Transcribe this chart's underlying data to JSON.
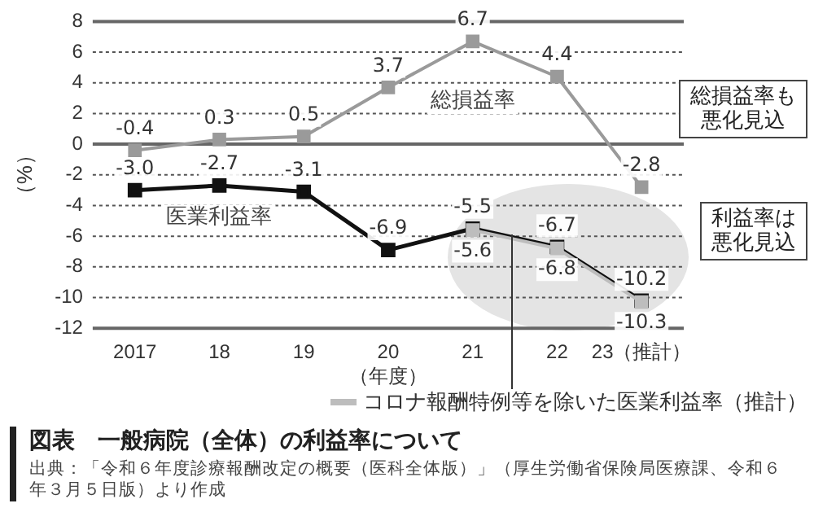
{
  "chart_data": {
    "type": "line",
    "title": "図表　一般病院（全体）の利益率について",
    "ylabel": "（%）",
    "xlabel": "（年度）",
    "categories": [
      "2017",
      "18",
      "19",
      "20",
      "21",
      "22",
      "23（推計）"
    ],
    "series": [
      {
        "name": "総損益率",
        "color": "#9a9a9a",
        "values": [
          -0.4,
          0.3,
          0.5,
          3.7,
          6.7,
          4.4,
          -2.8
        ],
        "value_labels": [
          "-0.4",
          "0.3",
          "0.5",
          "3.7",
          "6.7",
          "4.4",
          "-2.8"
        ]
      },
      {
        "name": "医業利益率",
        "color": "#111111",
        "values": [
          -3.0,
          -2.7,
          -3.1,
          -6.9,
          -5.5,
          -6.7,
          -10.2
        ],
        "value_labels": [
          "-3.0",
          "-2.7",
          "-3.1",
          "-6.9",
          "-5.5",
          "-6.7",
          "-10.2"
        ]
      },
      {
        "name": "コロナ報酬特例等を除いた医業利益率（推計）",
        "color": "#bdbdbd",
        "values": [
          null,
          null,
          null,
          null,
          -5.6,
          -6.8,
          -10.3
        ],
        "value_labels": [
          null,
          null,
          null,
          null,
          "-5.6",
          "-6.8",
          "-10.3"
        ]
      }
    ],
    "ylim": [
      -12,
      8
    ],
    "yticks": [
      -12,
      -10,
      -8,
      -6,
      -4,
      -2,
      0,
      2,
      4,
      6,
      8
    ],
    "grid": "y",
    "legend": "bottom right",
    "marker": "square",
    "line_style": "solid",
    "annotations": [
      "総損益率も悪化見込",
      "利益率は悪化見込",
      "出典：「令和６年度診療報酬改定の概要（医科全体版）」（厚生労働省保険局医療課、令和６年３月５日版）より作成"
    ]
  }
}
